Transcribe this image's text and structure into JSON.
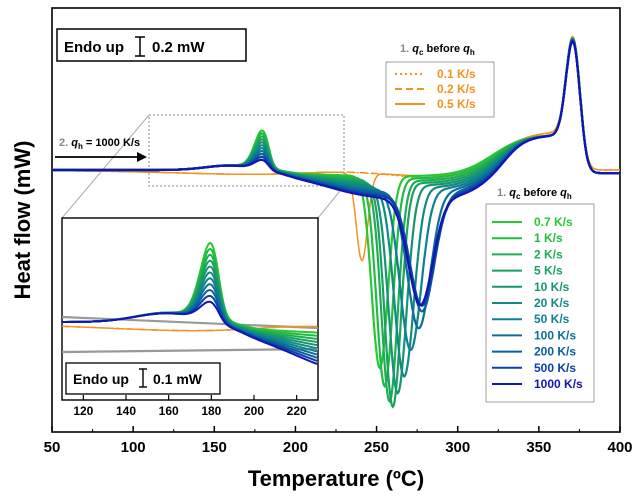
{
  "chart_data": {
    "type": "line",
    "xlabel": "Temperature (ºC)",
    "ylabel": "Heat flow (mW)",
    "xlim": [
      50,
      400
    ],
    "x_ticks": [
      "50",
      "100",
      "150",
      "200",
      "250",
      "300",
      "350",
      "400"
    ],
    "scale_bar": "Endo up",
    "scale_bar_value": "0.2 mW",
    "heating_annotation_num": "2.",
    "heating_annotation_sym": "q",
    "heating_annotation_sub": "h",
    "heating_annotation_rest": " = 1000 K/s",
    "legend_top": {
      "title_num": "1.",
      "title_q1": "q",
      "title_sub1": "c",
      "title_mid": " before ",
      "title_q2": "q",
      "title_sub2": "h",
      "placement": "top-center",
      "entries": [
        "0.1 K/s",
        "0.2 K/s",
        "0.5 K/s"
      ]
    },
    "legend_main": {
      "title_num": "1.",
      "title_q1": "q",
      "title_sub1": "c",
      "title_mid": " before ",
      "title_q2": "q",
      "title_sub2": "h",
      "placement": "right",
      "entries": [
        "0.7 K/s",
        "1 K/s",
        "2 K/s",
        "5 K/s",
        "10 K/s",
        "20 K/s",
        "50 K/s",
        "100 K/s",
        "200 K/s",
        "500 K/s",
        "1000 K/s"
      ]
    },
    "colors": {
      "slow": "#f5921e",
      "series": [
        "#28c832",
        "#22bb42",
        "#1eae52",
        "#1aa162",
        "#169472",
        "#128a82",
        "#0e8090",
        "#0a7096",
        "#08609e",
        "#0a40aa",
        "#1414b4"
      ]
    },
    "series": [
      {
        "name": "0.1 K/s",
        "style": "dotted",
        "cold_peak_temp": 0,
        "cold_peak_depth": 0,
        "cold_peak_width": 0,
        "melt_peak": 0.98
      },
      {
        "name": "0.2 K/s",
        "style": "dashed",
        "cold_peak_temp": 0,
        "cold_peak_depth": 0,
        "cold_peak_width": 0,
        "melt_peak": 0.99
      },
      {
        "name": "0.5 K/s",
        "style": "solid",
        "cold_peak_temp": 241,
        "cold_peak_depth": 0.55,
        "cold_peak_width": 7,
        "melt_peak": 0.99
      },
      {
        "name": "0.7 K/s",
        "style": "solid",
        "cold_peak_temp": 252,
        "cold_peak_depth": 1.2,
        "cold_peak_width": 10,
        "melt_peak": 1.0
      },
      {
        "name": "1 K/s",
        "style": "solid",
        "cold_peak_temp": 255,
        "cold_peak_depth": 1.3,
        "cold_peak_width": 10,
        "melt_peak": 1.0
      },
      {
        "name": "2 K/s",
        "style": "solid",
        "cold_peak_temp": 258,
        "cold_peak_depth": 1.38,
        "cold_peak_width": 10,
        "melt_peak": 1.0
      },
      {
        "name": "5 K/s",
        "style": "solid",
        "cold_peak_temp": 260,
        "cold_peak_depth": 1.4,
        "cold_peak_width": 10,
        "melt_peak": 1.0
      },
      {
        "name": "10 K/s",
        "style": "solid",
        "cold_peak_temp": 263,
        "cold_peak_depth": 1.3,
        "cold_peak_width": 11,
        "melt_peak": 1.0
      },
      {
        "name": "20 K/s",
        "style": "solid",
        "cold_peak_temp": 267,
        "cold_peak_depth": 1.18,
        "cold_peak_width": 12,
        "melt_peak": 1.0
      },
      {
        "name": "50 K/s",
        "style": "solid",
        "cold_peak_temp": 271,
        "cold_peak_depth": 1.0,
        "cold_peak_width": 13,
        "melt_peak": 0.99
      },
      {
        "name": "100 K/s",
        "style": "solid",
        "cold_peak_temp": 276,
        "cold_peak_depth": 0.85,
        "cold_peak_width": 14,
        "melt_peak": 0.99
      },
      {
        "name": "200 K/s",
        "style": "solid",
        "cold_peak_temp": 278,
        "cold_peak_depth": 0.73,
        "cold_peak_width": 15,
        "melt_peak": 0.98
      },
      {
        "name": "500 K/s",
        "style": "solid",
        "cold_peak_temp": 278,
        "cold_peak_depth": 0.68,
        "cold_peak_width": 15,
        "melt_peak": 0.98
      },
      {
        "name": "1000 K/s",
        "style": "solid",
        "cold_peak_temp": 277,
        "cold_peak_depth": 0.66,
        "cold_peak_width": 15,
        "melt_peak": 0.97
      }
    ],
    "inset": {
      "xlim": [
        110,
        230
      ],
      "x_ticks": [
        "120",
        "140",
        "160",
        "180",
        "200",
        "220"
      ],
      "scale_bar": "Endo up",
      "scale_bar_value": "0.1 mW"
    }
  }
}
